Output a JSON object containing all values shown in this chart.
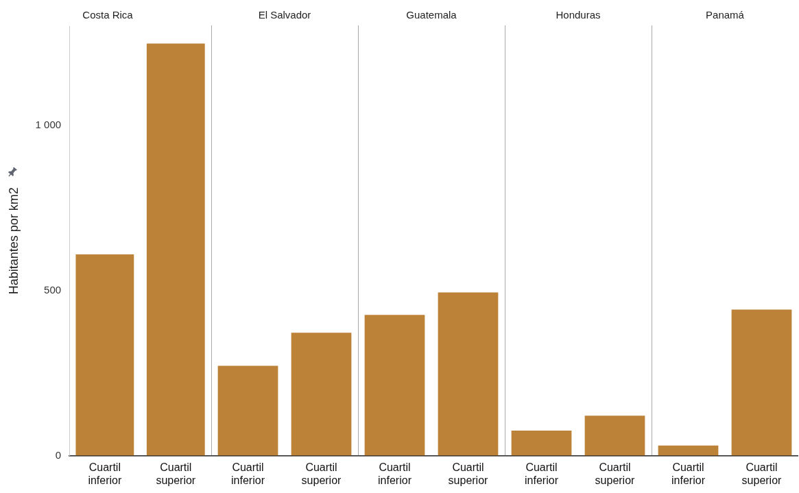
{
  "chart_data": [
    {
      "type": "bar",
      "title": "Costa Rica",
      "ylabel": "Habitantes por km2",
      "categories": [
        "Cuartil inferior",
        "Cuartil superior"
      ],
      "values": [
        609,
        1247
      ],
      "color": "#bc8237",
      "ylim": [
        0,
        1300
      ],
      "yticks": [
        0,
        500,
        {
          "value": 1000,
          "label": "1 000"
        }
      ],
      "grid": false
    },
    {
      "type": "bar",
      "title": "El Salvador",
      "categories": [
        "Cuartil inferior",
        "Cuartil superior"
      ],
      "values": [
        272,
        372
      ],
      "color": "#bc8237",
      "ylim": [
        0,
        1300
      ],
      "yticks": [
        0,
        500,
        1000
      ],
      "grid": false,
      "tick_labels": "x"
    },
    {
      "type": "bar",
      "title": "Guatemala",
      "categories": [
        "Cuartil inferior",
        "Cuartil superior"
      ],
      "values": [
        426,
        494
      ],
      "color": "#bc8237",
      "ylim": [
        0,
        1300
      ],
      "yticks": [
        0,
        500,
        1000
      ],
      "grid": false,
      "tick_labels": "x"
    },
    {
      "type": "bar",
      "title": "Honduras",
      "categories": [
        "Cuartil inferior",
        "Cuartil superior"
      ],
      "values": [
        76,
        121
      ],
      "color": "#bc8237",
      "ylim": [
        0,
        1300
      ],
      "yticks": [
        0,
        500,
        1000
      ],
      "grid": false,
      "tick_labels": "x"
    },
    {
      "type": "bar",
      "title": "Panamá",
      "categories": [
        "Cuartil inferior",
        "Cuartil superior"
      ],
      "values": [
        31,
        442
      ],
      "color": "#bc8237",
      "ylim": [
        0,
        1300
      ],
      "yticks": [
        0,
        500,
        1000
      ],
      "grid": false,
      "tick_labels": "x"
    }
  ]
}
